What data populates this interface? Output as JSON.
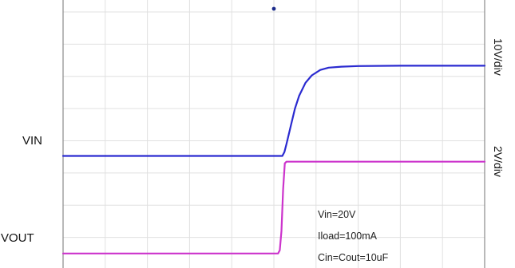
{
  "chart_data": {
    "type": "line",
    "title": "",
    "xlabel": "",
    "ylabel": "",
    "grid": true,
    "grid_divisions": {
      "x": 10,
      "y": 8
    },
    "xlim": [
      0,
      10
    ],
    "ylim": [
      0,
      8
    ],
    "series": [
      {
        "name": "VIN",
        "color": "#2a2ad0",
        "scale_label": "10V/div",
        "x": [
          0,
          5.2,
          5.25,
          5.3,
          5.4,
          5.5,
          5.6,
          5.75,
          5.9,
          6.1,
          6.3,
          6.6,
          7.0,
          8.0,
          10.0
        ],
        "y": [
          3.53,
          3.53,
          3.65,
          3.9,
          4.45,
          5.0,
          5.4,
          5.8,
          6.03,
          6.2,
          6.27,
          6.3,
          6.32,
          6.33,
          6.33
        ]
      },
      {
        "name": "VOUT",
        "color": "#cc33cc",
        "scale_label": "2V/div",
        "x": [
          0,
          5.1,
          5.14,
          5.18,
          5.22,
          5.26,
          5.3,
          10.0
        ],
        "y": [
          0.5,
          0.5,
          0.6,
          1.2,
          2.5,
          3.3,
          3.35,
          3.35
        ]
      }
    ],
    "annotations": [
      "Vin=20V",
      "Iload=100mA",
      "Cin=Cout=10uF"
    ]
  }
}
